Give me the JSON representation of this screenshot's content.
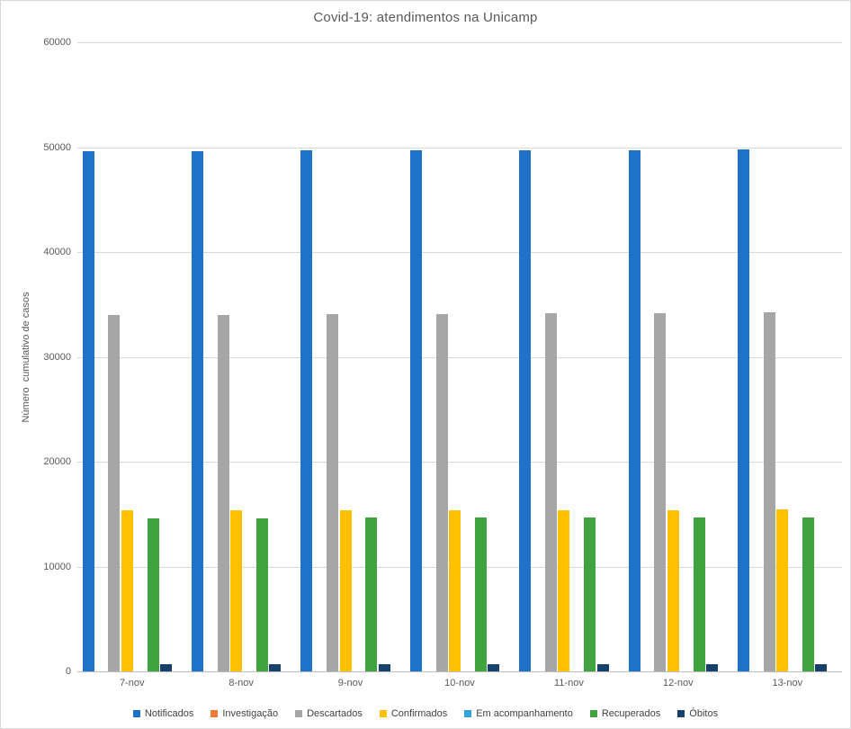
{
  "chart_data": {
    "type": "bar",
    "title": "Covid-19: atendimentos na Unicamp",
    "xlabel": "",
    "ylabel": "Número  cumulativo de casos",
    "categories": [
      "7-nov",
      "8-nov",
      "9-nov",
      "10-nov",
      "11-nov",
      "12-nov",
      "13-nov"
    ],
    "series": [
      {
        "name": "Notificados",
        "color": "#1e73c9",
        "values": [
          49590,
          49640,
          49670,
          49690,
          49710,
          49730,
          49820
        ]
      },
      {
        "name": "Investigação",
        "color": "#ed7d31",
        "values": [
          0,
          0,
          0,
          0,
          0,
          0,
          0
        ]
      },
      {
        "name": "Descartados",
        "color": "#a6a6a6",
        "values": [
          33960,
          34010,
          34060,
          34100,
          34130,
          34160,
          34250
        ]
      },
      {
        "name": "Confirmados",
        "color": "#ffc000",
        "values": [
          15350,
          15360,
          15360,
          15370,
          15380,
          15390,
          15410
        ]
      },
      {
        "name": "Em acompanhamento",
        "color": "#35a0dc",
        "values": [
          0,
          0,
          0,
          0,
          0,
          0,
          0
        ]
      },
      {
        "name": "Recuperados",
        "color": "#3fa43f",
        "values": [
          14600,
          14620,
          14640,
          14650,
          14660,
          14670,
          14690
        ]
      },
      {
        "name": "Óbitos",
        "color": "#17406b",
        "values": [
          688,
          690,
          692,
          694,
          696,
          698,
          700
        ]
      }
    ],
    "ylim": [
      0,
      60000
    ],
    "ytick_step": 10000,
    "ytick_labels": [
      "0",
      "10000",
      "20000",
      "30000",
      "40000",
      "50000",
      "60000"
    ],
    "grid": "horizontal",
    "legend_position": "bottom"
  },
  "colors": {
    "background": "#ffffff",
    "frame_border": "#d9d9d9",
    "gridline": "#d9d9d9",
    "axis_line": "#bfbfbf",
    "title_text": "#595959",
    "tick_text": "#595959",
    "legend_text": "#404040"
  }
}
